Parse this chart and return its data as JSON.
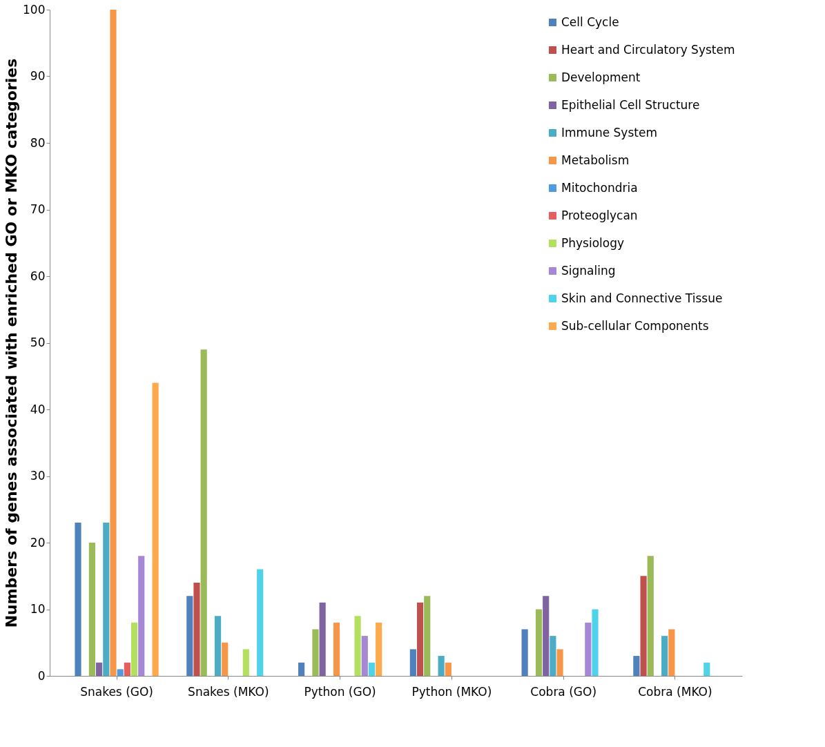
{
  "chart_data": {
    "type": "bar",
    "ylabel": "Numbers of genes associated with enriched GO or MKO categories",
    "categories": [
      "Snakes (GO)",
      "Snakes (MKO)",
      "Python (GO)",
      "Python (MKO)",
      "Cobra (GO)",
      "Cobra (MKO)"
    ],
    "ylim": [
      0,
      100
    ],
    "yticks": [
      0,
      10,
      20,
      30,
      40,
      50,
      60,
      70,
      80,
      90,
      100
    ],
    "grid": false,
    "legend": "top right",
    "series": [
      {
        "name": "Cell Cycle",
        "color": "#4f81bd",
        "values": [
          23,
          12,
          2,
          4,
          7,
          3
        ]
      },
      {
        "name": "Heart and Circulatory System",
        "color": "#c0504d",
        "values": [
          0,
          14,
          0,
          11,
          0,
          15
        ]
      },
      {
        "name": "Development",
        "color": "#9bbb59",
        "values": [
          20,
          49,
          7,
          12,
          10,
          18
        ]
      },
      {
        "name": "Epithelial Cell Structure",
        "color": "#8064a2",
        "values": [
          2,
          0,
          11,
          0,
          12,
          0
        ]
      },
      {
        "name": "Immune System",
        "color": "#4bacc6",
        "values": [
          23,
          9,
          0,
          3,
          6,
          6
        ]
      },
      {
        "name": "Metabolism",
        "color": "#f79646",
        "values": [
          100,
          5,
          8,
          2,
          4,
          7
        ]
      },
      {
        "name": "Mitochondria",
        "color": "#4f9be0",
        "values": [
          1,
          0,
          0,
          0,
          0,
          0
        ]
      },
      {
        "name": "Proteoglycan",
        "color": "#e5605c",
        "values": [
          2,
          0,
          0,
          0,
          0,
          0
        ]
      },
      {
        "name": "Physiology",
        "color": "#b3e05f",
        "values": [
          8,
          4,
          9,
          0,
          0,
          0
        ]
      },
      {
        "name": "Signaling",
        "color": "#a687d6",
        "values": [
          18,
          0,
          6,
          0,
          8,
          0
        ]
      },
      {
        "name": "Skin and Connective Tissue",
        "color": "#4fd3eb",
        "values": [
          0,
          16,
          2,
          0,
          10,
          2
        ]
      },
      {
        "name": "Sub-cellular Components",
        "color": "#ffa94d",
        "values": [
          44,
          0,
          8,
          0,
          0,
          0
        ]
      }
    ]
  }
}
